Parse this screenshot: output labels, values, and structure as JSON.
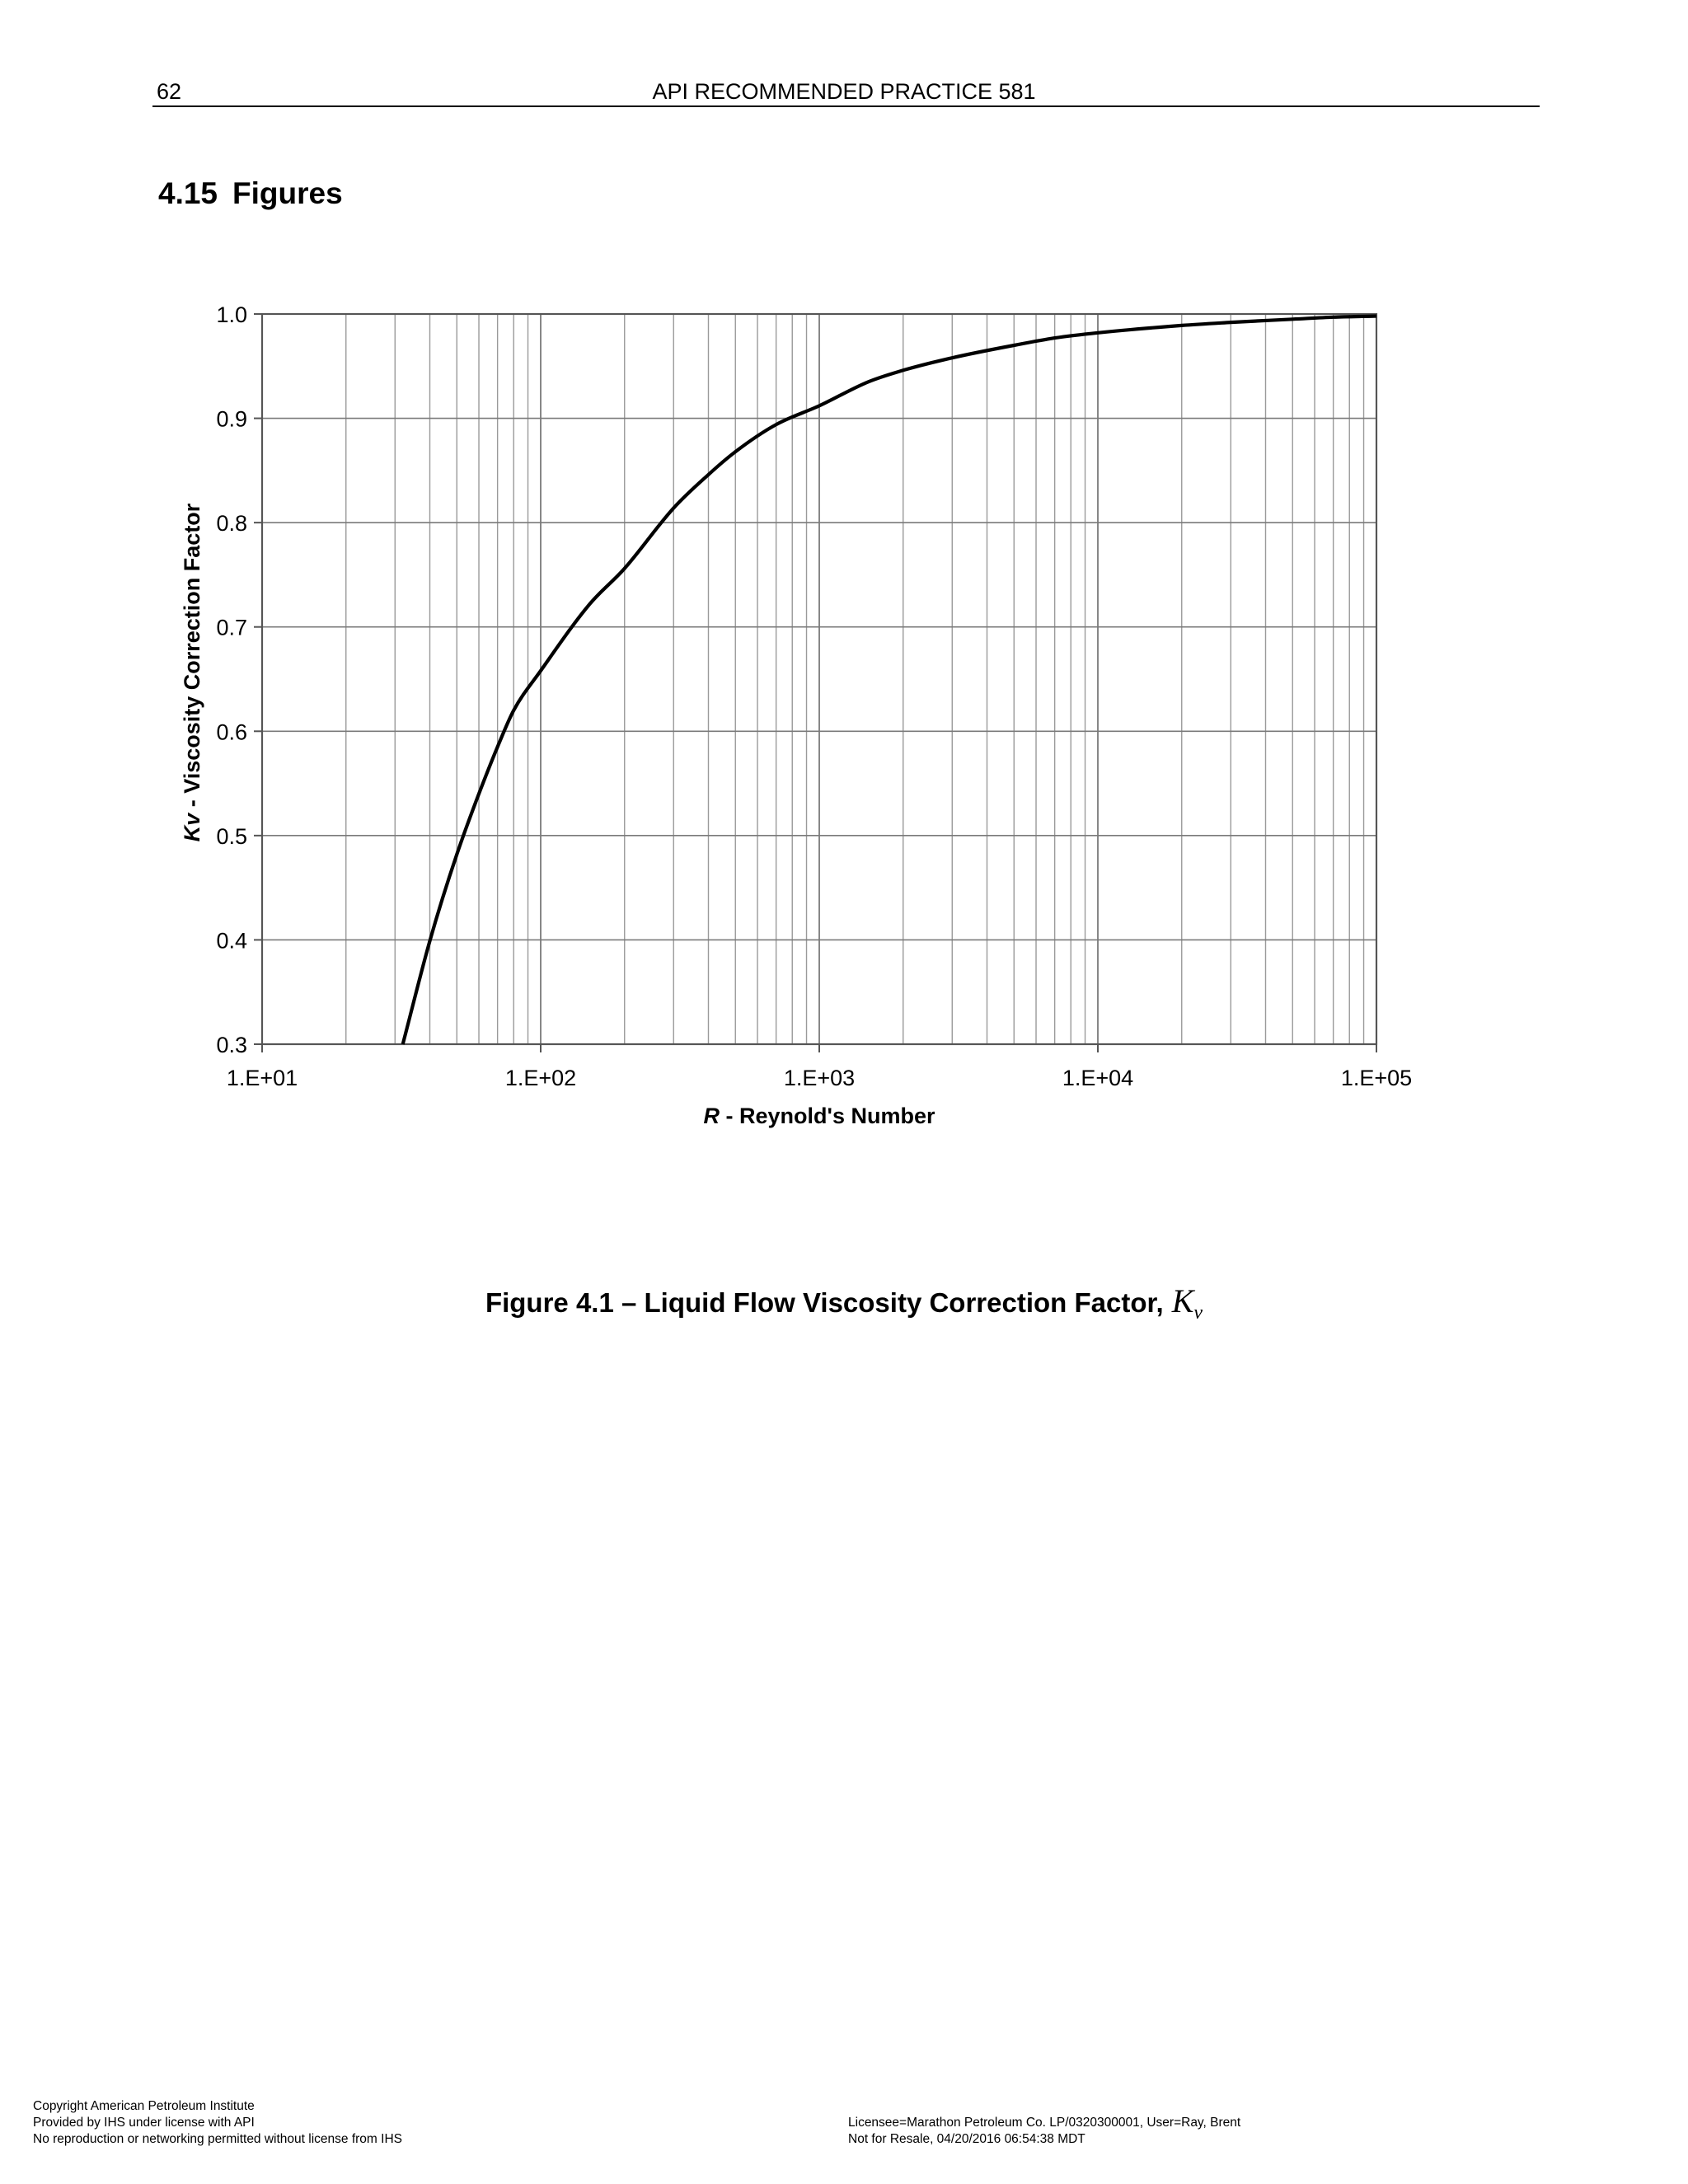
{
  "header": {
    "page_number": "62",
    "doc_title": "API RECOMMENDED PRACTICE 581"
  },
  "section": {
    "number": "4.15",
    "title": "Figures"
  },
  "chart_data": {
    "type": "line",
    "x_scale": "log",
    "xlim": [
      10,
      100000
    ],
    "ylim": [
      0.3,
      1.0
    ],
    "xticks": [
      "1.E+01",
      "1.E+02",
      "1.E+03",
      "1.E+04",
      "1.E+05"
    ],
    "yticks": [
      "1.0",
      "0.9",
      "0.8",
      "0.7",
      "0.6",
      "0.5",
      "0.4",
      "0.3"
    ],
    "ytick_values": [
      1.0,
      0.9,
      0.8,
      0.7,
      0.6,
      0.5,
      0.4,
      0.3
    ],
    "xlabel_var": "R",
    "xlabel_text": " - Reynold's Number",
    "ylabel_var": "Kv",
    "ylabel_text": "  -  Viscosity Correction Factor",
    "grid": true,
    "series": [
      {
        "x": [
          32,
          40,
          50,
          60,
          70,
          80,
          100,
          150,
          200,
          300,
          400,
          500,
          700,
          1000,
          1500,
          2000,
          3000,
          5000,
          7000,
          10000,
          20000,
          30000,
          50000,
          70000,
          100000
        ],
        "y": [
          0.3,
          0.399,
          0.482,
          0.54,
          0.585,
          0.62,
          0.658,
          0.722,
          0.756,
          0.814,
          0.846,
          0.868,
          0.894,
          0.912,
          0.935,
          0.946,
          0.958,
          0.97,
          0.977,
          0.982,
          0.989,
          0.992,
          0.995,
          0.997,
          0.998
        ]
      }
    ]
  },
  "caption": {
    "text": "Figure 4.1 – Liquid Flow Viscosity Correction Factor,",
    "symbol": "K",
    "subscript": "v"
  },
  "footer": {
    "left": [
      "Copyright American Petroleum Institute",
      "Provided by IHS under license with API",
      "No reproduction or networking permitted without license from IHS"
    ],
    "right": [
      "Licensee=Marathon Petroleum Co. LP/0320300001, User=Ray, Brent",
      "Not for Resale, 04/20/2016 06:54:38 MDT"
    ]
  }
}
